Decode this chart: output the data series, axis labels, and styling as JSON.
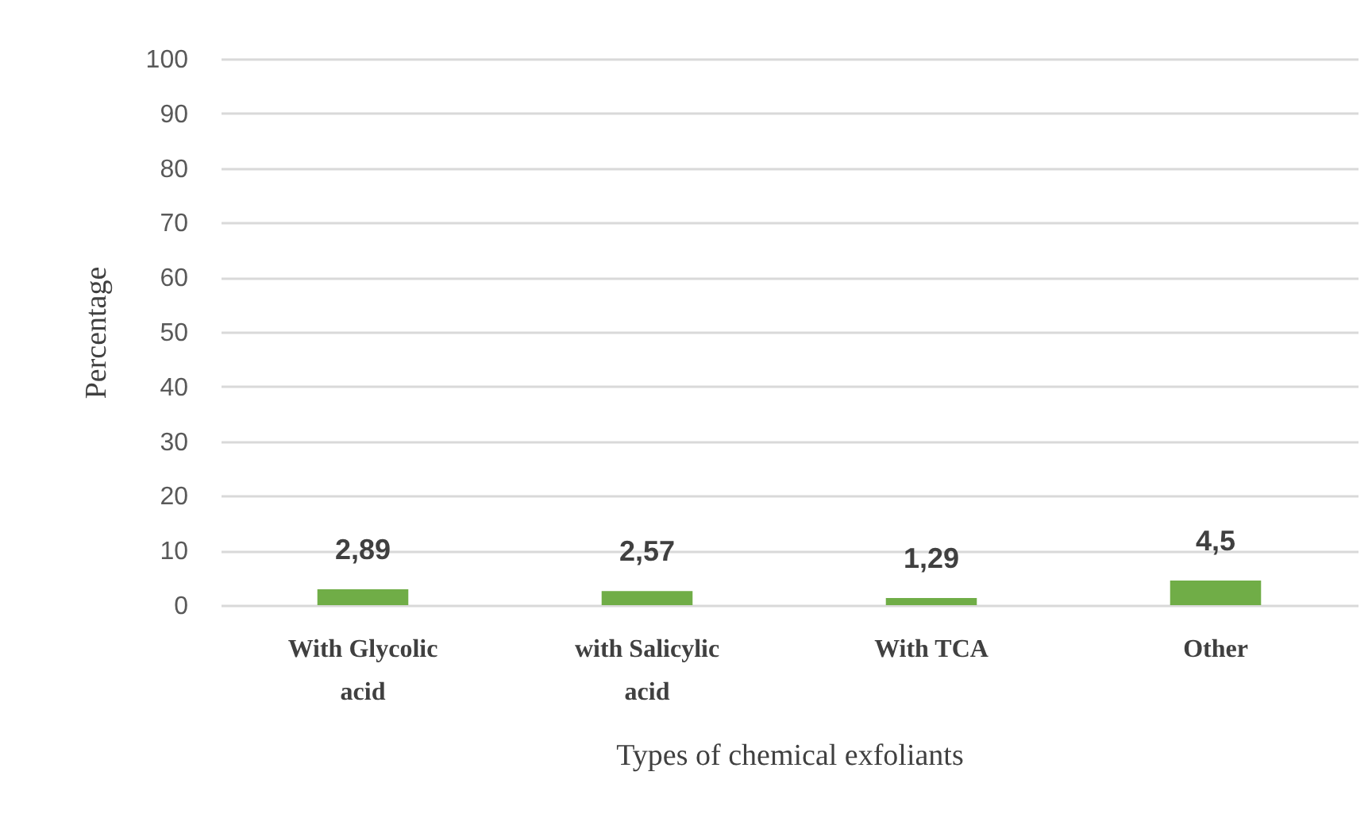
{
  "chart_data": {
    "type": "bar",
    "xlabel": "Types of chemical exfoliants",
    "ylabel": "Percentage",
    "categories": [
      "With Glycolic acid",
      "with Salicylic acid",
      "With TCA",
      "Other"
    ],
    "values": [
      2.89,
      2.57,
      1.29,
      4.5
    ],
    "color": "#70ad47",
    "value_labels": [
      "2,89",
      "2,57",
      "1,29",
      "4,5"
    ],
    "ylim": [
      0,
      100
    ],
    "yticks": [
      0,
      10,
      20,
      30,
      40,
      50,
      60,
      70,
      80,
      90,
      100
    ],
    "grid": "y"
  }
}
